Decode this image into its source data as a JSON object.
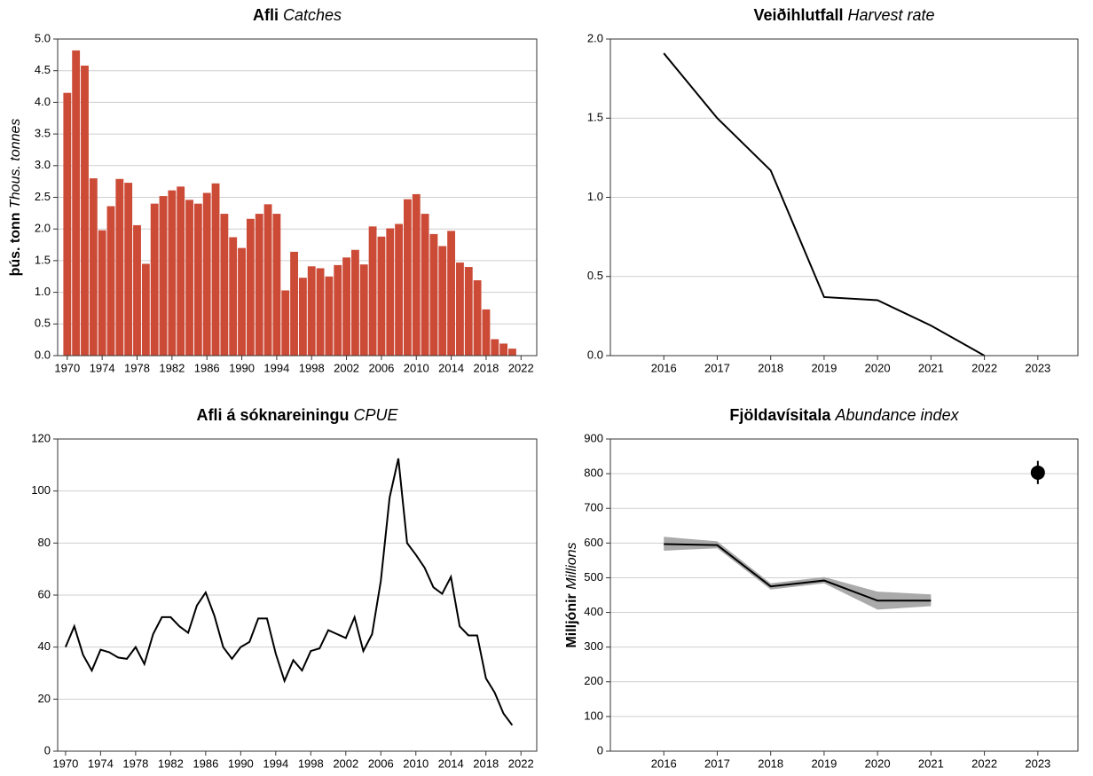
{
  "chart_data": [
    {
      "type": "bar",
      "title": "Afli",
      "title_en": "Catches",
      "ylabel": "þús. tonn",
      "ylabel_en": "Thous. tonnes",
      "color": "#cc4b37",
      "grid": true,
      "x": [
        1970,
        1971,
        1972,
        1973,
        1974,
        1975,
        1976,
        1977,
        1978,
        1979,
        1980,
        1981,
        1982,
        1983,
        1984,
        1985,
        1986,
        1987,
        1988,
        1989,
        1990,
        1991,
        1992,
        1993,
        1994,
        1995,
        1996,
        1997,
        1998,
        1999,
        2000,
        2001,
        2002,
        2003,
        2004,
        2005,
        2006,
        2007,
        2008,
        2009,
        2010,
        2011,
        2012,
        2013,
        2014,
        2015,
        2016,
        2017,
        2018,
        2019,
        2020,
        2021
      ],
      "values": [
        4.15,
        4.82,
        4.58,
        2.8,
        1.98,
        2.36,
        2.79,
        2.73,
        2.06,
        1.45,
        2.4,
        2.52,
        2.61,
        2.67,
        2.46,
        2.4,
        2.57,
        2.72,
        2.24,
        1.87,
        1.7,
        2.16,
        2.24,
        2.39,
        2.24,
        1.03,
        1.64,
        1.23,
        1.41,
        1.38,
        1.25,
        1.43,
        1.55,
        1.67,
        1.44,
        2.04,
        1.88,
        2.01,
        2.08,
        2.47,
        2.55,
        2.24,
        1.92,
        1.73,
        1.97,
        1.47,
        1.4,
        1.19,
        0.73,
        0.26,
        0.19,
        0.11
      ],
      "xlim": [
        1968.9,
        2023.8
      ],
      "xticks": [
        1970,
        1974,
        1978,
        1982,
        1986,
        1990,
        1994,
        1998,
        2002,
        2006,
        2010,
        2014,
        2018,
        2022
      ],
      "ylim": [
        0,
        5
      ],
      "yticks": [
        {
          "value": 0,
          "label": "0.0"
        },
        0.5,
        {
          "value": 1,
          "label": "1.0"
        },
        1.5,
        {
          "value": 2,
          "label": "2.0"
        },
        2.5,
        {
          "value": 3,
          "label": "3.0"
        },
        3.5,
        {
          "value": 4,
          "label": "4.0"
        },
        4.5,
        {
          "value": 5,
          "label": "5.0"
        }
      ]
    },
    {
      "type": "line",
      "title": "Veiðihlutfall",
      "title_en": "Harvest rate",
      "color": "#000000",
      "grid": true,
      "x": [
        2016,
        2017,
        2018,
        2019,
        2020,
        2021,
        2022
      ],
      "values": [
        1.91,
        1.5,
        1.17,
        0.37,
        0.35,
        0.19,
        0.0
      ],
      "xlim": [
        2015,
        2023.75
      ],
      "xticks": [
        2016,
        2017,
        2018,
        2019,
        2020,
        2021,
        2022,
        2023
      ],
      "ylim": [
        0,
        2
      ],
      "yticks": [
        {
          "value": 0,
          "label": "0.0"
        },
        0.5,
        {
          "value": 1,
          "label": "1.0"
        },
        1.5,
        {
          "value": 2,
          "label": "2.0"
        }
      ]
    },
    {
      "type": "line",
      "title": "Afli á sóknareiningu",
      "title_en": "CPUE",
      "color": "#000000",
      "grid": true,
      "x": [
        1970,
        1971,
        1972,
        1973,
        1974,
        1975,
        1976,
        1977,
        1978,
        1979,
        1980,
        1981,
        1982,
        1983,
        1984,
        1985,
        1986,
        1987,
        1988,
        1989,
        1990,
        1991,
        1992,
        1993,
        1994,
        1995,
        1996,
        1997,
        1998,
        1999,
        2000,
        2001,
        2002,
        2003,
        2004,
        2005,
        2006,
        2007,
        2008,
        2009,
        2010,
        2011,
        2012,
        2013,
        2014,
        2015,
        2016,
        2017,
        2018,
        2019,
        2020,
        2021
      ],
      "values": [
        40,
        48,
        37,
        31,
        39,
        38,
        36,
        35.5,
        40,
        33.5,
        45,
        51.5,
        51.5,
        48,
        45.5,
        56,
        61,
        52,
        40,
        35.5,
        40,
        42,
        51,
        51,
        37.5,
        27,
        35,
        31,
        38.5,
        39.5,
        46.5,
        45,
        43.5,
        51.5,
        38.5,
        45,
        65.5,
        97.5,
        112.5,
        80,
        75.5,
        70.5,
        63,
        60.5,
        67,
        48,
        44.5,
        44.5,
        28,
        22.5,
        14.5,
        10
      ],
      "xlim": [
        1969.1,
        2023.8
      ],
      "xticks": [
        1970,
        1974,
        1978,
        1982,
        1986,
        1990,
        1994,
        1998,
        2002,
        2006,
        2010,
        2014,
        2018,
        2022
      ],
      "ylim": [
        0,
        120
      ],
      "yticks": [
        0,
        20,
        40,
        60,
        80,
        100,
        120
      ]
    },
    {
      "type": "line",
      "title": "Fjöldavísitala",
      "title_en": "Abundance index",
      "ylabel": "Milljónir",
      "ylabel_en": "Millions",
      "color": "#000000",
      "band_color": "#aaaaaa",
      "grid": true,
      "x": [
        2016,
        2017,
        2018,
        2019,
        2020,
        2021
      ],
      "values": [
        597,
        594,
        475,
        492,
        434,
        434
      ],
      "lower": [
        578,
        585,
        466,
        484,
        408,
        418
      ],
      "upper": [
        618,
        605,
        484,
        502,
        460,
        452
      ],
      "point": {
        "x": 2023,
        "value": 803,
        "lower": 770,
        "upper": 837
      },
      "xlim": [
        2015,
        2023.75
      ],
      "xticks": [
        2016,
        2017,
        2018,
        2019,
        2020,
        2021,
        2022,
        2023
      ],
      "ylim": [
        0,
        900
      ],
      "yticks": [
        0,
        100,
        200,
        300,
        400,
        500,
        600,
        700,
        800,
        900
      ]
    }
  ]
}
